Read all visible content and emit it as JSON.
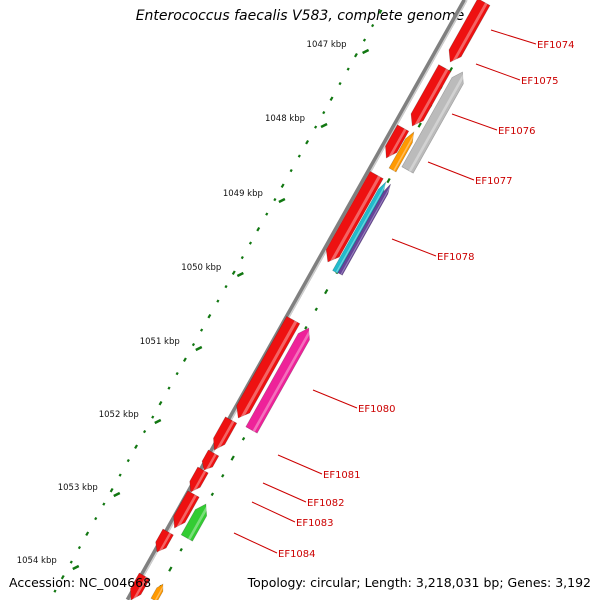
{
  "title": "Enterococcus faecalis V583, complete genome",
  "footer": {
    "accession": "Accession: NC_004668",
    "topology": "Topology: circular; Length: 3,218,031 bp; Genes: 3,192"
  },
  "kbp_ticks": [
    "1047 kbp",
    "1048 kbp",
    "1049 kbp",
    "1050 kbp",
    "1051 kbp",
    "1052 kbp",
    "1053 kbp",
    "1054 kbp"
  ],
  "colors": {
    "backbone": "#808080",
    "gene_red": "#ee1111",
    "gene_gray": "#bbbbbb",
    "gene_orange": "#ff9900",
    "gene_cyan": "#22bbcc",
    "gene_purple": "#664499",
    "gene_pink": "#ee2299",
    "gene_green": "#33cc33",
    "dots": "#117711",
    "label": "#cc0000"
  },
  "gene_labels": [
    "EF1074",
    "EF1075",
    "EF1076",
    "EF1077",
    "EF1078",
    "EF1080",
    "EF1081",
    "EF1082",
    "EF1083",
    "EF1084"
  ]
}
